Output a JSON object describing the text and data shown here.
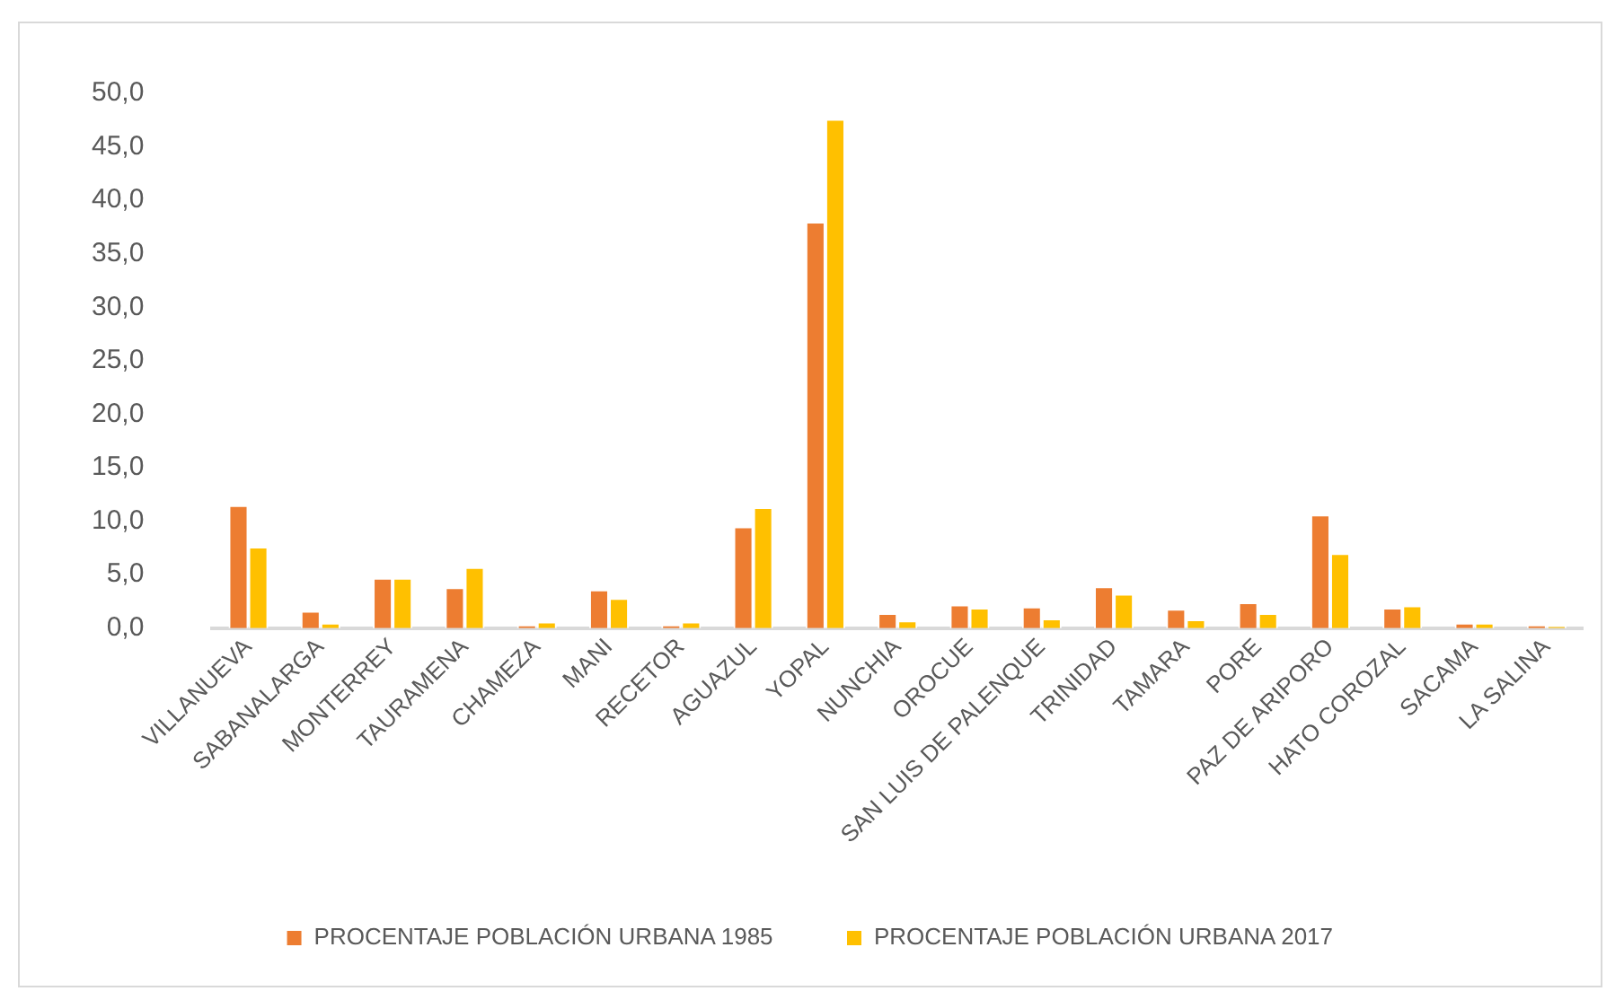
{
  "chart_data": {
    "type": "bar",
    "categories": [
      "VILLANUEVA",
      "SABANALARGA",
      "MONTERREY",
      "TAURAMENA",
      "CHAMEZA",
      "MANI",
      "RECETOR",
      "AGUAZUL",
      "YOPAL",
      "NUNCHIA",
      "OROCUE",
      "SAN LUIS DE PALENQUE",
      "TRINIDAD",
      "TAMARA",
      "PORE",
      "PAZ DE ARIPORO",
      "HATO COROZAL",
      "SACAMA",
      "LA SALINA"
    ],
    "series": [
      {
        "name": "PROCENTAJE POBLACIÓN URBANA 1985",
        "color": "#ed7d31",
        "values": [
          11.5,
          1.6,
          4.7,
          3.8,
          0.3,
          3.6,
          0.3,
          9.5,
          38.0,
          1.4,
          2.2,
          2.0,
          3.9,
          1.8,
          2.4,
          10.6,
          1.9,
          0.5,
          0.3
        ]
      },
      {
        "name": "PROCENTAJE POBLACIÓN URBANA 2017",
        "color": "#ffc000",
        "values": [
          7.6,
          0.5,
          4.7,
          5.7,
          0.6,
          2.8,
          0.6,
          11.3,
          47.6,
          0.7,
          1.9,
          0.9,
          3.2,
          0.8,
          1.4,
          7.0,
          2.1,
          0.5,
          0.2
        ]
      }
    ],
    "ylim": [
      0,
      50
    ],
    "yticks": [
      {
        "value": 0,
        "label": "0,0"
      },
      {
        "value": 5,
        "label": "5,0"
      },
      {
        "value": 10,
        "label": "10,0"
      },
      {
        "value": 15,
        "label": "15,0"
      },
      {
        "value": 20,
        "label": "20,0"
      },
      {
        "value": 25,
        "label": "25,0"
      },
      {
        "value": 30,
        "label": "30,0"
      },
      {
        "value": 35,
        "label": "35,0"
      },
      {
        "value": 40,
        "label": "40,0"
      },
      {
        "value": 45,
        "label": "45,0"
      },
      {
        "value": 50,
        "label": "50,0"
      }
    ],
    "grid": false,
    "legend": "bottom"
  }
}
